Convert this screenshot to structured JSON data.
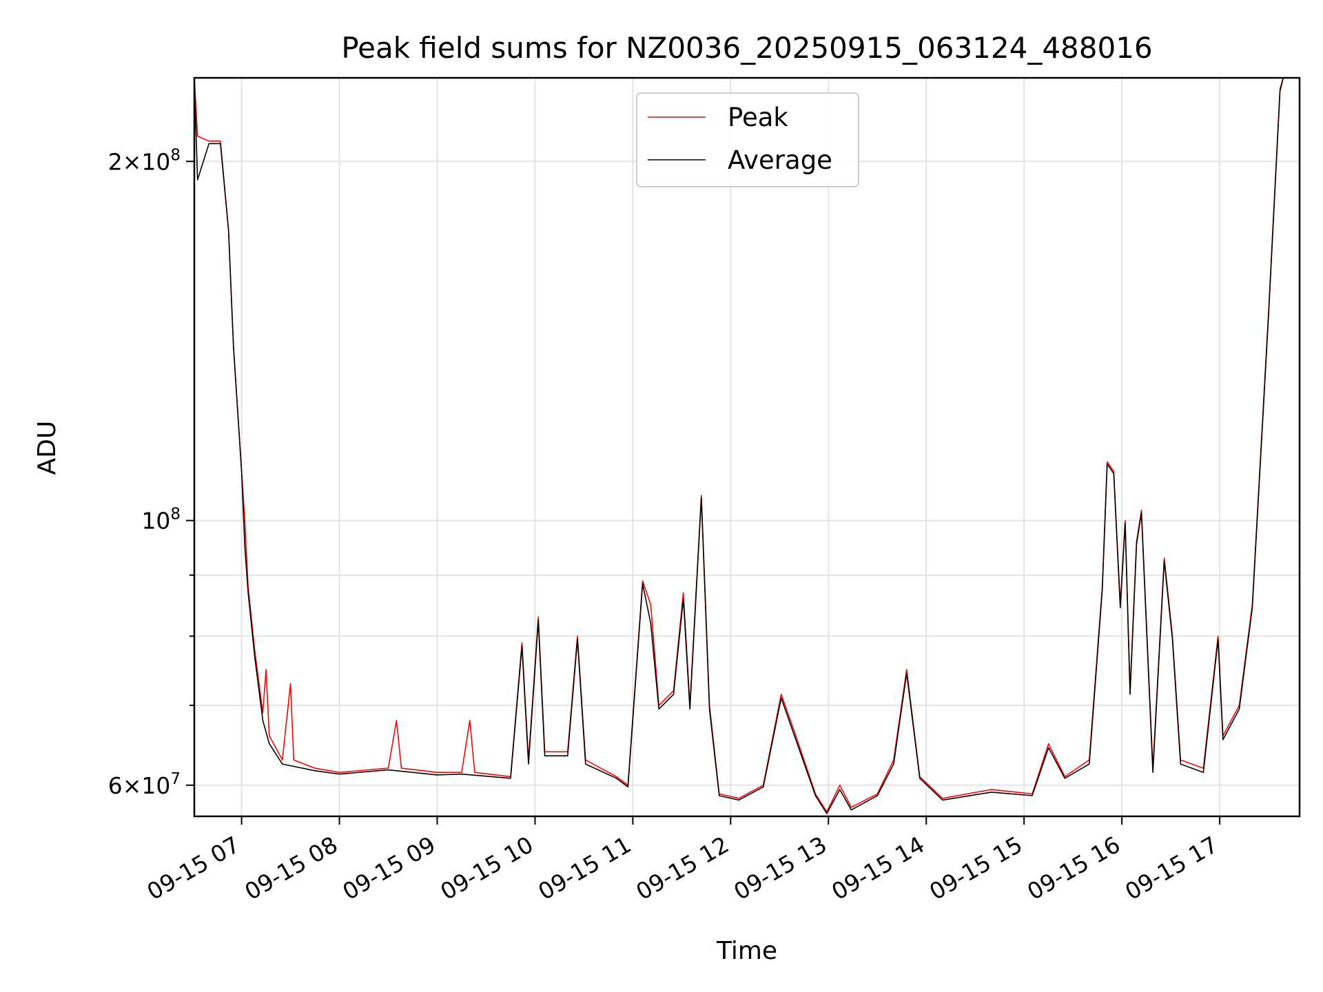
{
  "chart_data": {
    "type": "line",
    "title": "Peak field sums for NZ0036_20250915_063124_488016",
    "xlabel": "Time",
    "ylabel": "ADU",
    "y_scale": "log",
    "xlim": [
      "2025-09-15 06:31",
      "2025-09-15 17:49"
    ],
    "ylim": [
      56500000,
      235000000
    ],
    "grid": true,
    "legend_position": "top-center",
    "x_tick_labels": [
      "09-15 07",
      "09-15 08",
      "09-15 09",
      "09-15 10",
      "09-15 11",
      "09-15 12",
      "09-15 13",
      "09-15 14",
      "09-15 15",
      "09-15 16",
      "09-15 17"
    ],
    "x_tick_values": [
      "2025-09-15 07:00",
      "2025-09-15 08:00",
      "2025-09-15 09:00",
      "2025-09-15 10:00",
      "2025-09-15 11:00",
      "2025-09-15 12:00",
      "2025-09-15 13:00",
      "2025-09-15 14:00",
      "2025-09-15 15:00",
      "2025-09-15 16:00",
      "2025-09-15 17:00"
    ],
    "y_major_ticks": [
      {
        "value": 200000000,
        "mantissa": "2",
        "exponent": "8"
      },
      {
        "value": 100000000,
        "mantissa": "",
        "exponent": "8"
      },
      {
        "value": 60000000,
        "mantissa": "6",
        "exponent": "7"
      }
    ],
    "y_minor_ticks": [
      70000000,
      80000000,
      90000000
    ],
    "series": [
      {
        "name": "Peak",
        "color": "#ff0000",
        "points": [
          [
            "2025-09-15 06:31",
            235000000
          ],
          [
            "2025-09-15 06:33",
            210000000
          ],
          [
            "2025-09-15 06:40",
            208000000
          ],
          [
            "2025-09-15 06:47",
            208000000
          ],
          [
            "2025-09-15 06:52",
            175000000
          ],
          [
            "2025-09-15 06:55",
            140000000
          ],
          [
            "2025-09-15 07:00",
            110000000
          ],
          [
            "2025-09-15 07:02",
            100000000
          ],
          [
            "2025-09-15 07:04",
            88000000
          ],
          [
            "2025-09-15 07:08",
            78000000
          ],
          [
            "2025-09-15 07:13",
            69000000
          ],
          [
            "2025-09-15 07:15",
            75000000
          ],
          [
            "2025-09-15 07:17",
            66000000
          ],
          [
            "2025-09-15 07:25",
            63000000
          ],
          [
            "2025-09-15 07:30",
            73000000
          ],
          [
            "2025-09-15 07:32",
            63000000
          ],
          [
            "2025-09-15 07:45",
            62000000
          ],
          [
            "2025-09-15 08:00",
            61500000
          ],
          [
            "2025-09-15 08:30",
            62000000
          ],
          [
            "2025-09-15 08:35",
            68000000
          ],
          [
            "2025-09-15 08:38",
            62000000
          ],
          [
            "2025-09-15 09:00",
            61500000
          ],
          [
            "2025-09-15 09:15",
            61500000
          ],
          [
            "2025-09-15 09:20",
            68000000
          ],
          [
            "2025-09-15 09:23",
            61500000
          ],
          [
            "2025-09-15 09:45",
            61000000
          ],
          [
            "2025-09-15 09:52",
            79000000
          ],
          [
            "2025-09-15 09:56",
            63000000
          ],
          [
            "2025-09-15 10:02",
            83000000
          ],
          [
            "2025-09-15 10:06",
            64000000
          ],
          [
            "2025-09-15 10:20",
            64000000
          ],
          [
            "2025-09-15 10:26",
            80000000
          ],
          [
            "2025-09-15 10:31",
            63000000
          ],
          [
            "2025-09-15 10:50",
            61000000
          ],
          [
            "2025-09-15 10:57",
            60000000
          ],
          [
            "2025-09-15 11:06",
            89000000
          ],
          [
            "2025-09-15 11:11",
            85000000
          ],
          [
            "2025-09-15 11:16",
            70000000
          ],
          [
            "2025-09-15 11:25",
            72000000
          ],
          [
            "2025-09-15 11:31",
            87000000
          ],
          [
            "2025-09-15 11:35",
            70000000
          ],
          [
            "2025-09-15 11:42",
            105000000
          ],
          [
            "2025-09-15 11:47",
            70000000
          ],
          [
            "2025-09-15 11:53",
            59000000
          ],
          [
            "2025-09-15 12:05",
            58500000
          ],
          [
            "2025-09-15 12:20",
            60000000
          ],
          [
            "2025-09-15 12:31",
            71500000
          ],
          [
            "2025-09-15 12:40",
            66000000
          ],
          [
            "2025-09-15 12:52",
            59000000
          ],
          [
            "2025-09-15 12:59",
            57000000
          ],
          [
            "2025-09-15 13:07",
            60000000
          ],
          [
            "2025-09-15 13:14",
            57500000
          ],
          [
            "2025-09-15 13:30",
            59000000
          ],
          [
            "2025-09-15 13:40",
            63000000
          ],
          [
            "2025-09-15 13:48",
            75000000
          ],
          [
            "2025-09-15 13:56",
            61000000
          ],
          [
            "2025-09-15 14:10",
            58500000
          ],
          [
            "2025-09-15 14:40",
            59500000
          ],
          [
            "2025-09-15 15:05",
            59000000
          ],
          [
            "2025-09-15 15:15",
            65000000
          ],
          [
            "2025-09-15 15:25",
            61000000
          ],
          [
            "2025-09-15 15:40",
            63000000
          ],
          [
            "2025-09-15 15:48",
            88000000
          ],
          [
            "2025-09-15 15:51",
            112000000
          ],
          [
            "2025-09-15 15:55",
            110000000
          ],
          [
            "2025-09-15 15:59",
            85000000
          ],
          [
            "2025-09-15 16:02",
            100000000
          ],
          [
            "2025-09-15 16:05",
            72000000
          ],
          [
            "2025-09-15 16:09",
            96000000
          ],
          [
            "2025-09-15 16:12",
            102000000
          ],
          [
            "2025-09-15 16:19",
            62000000
          ],
          [
            "2025-09-15 16:26",
            93000000
          ],
          [
            "2025-09-15 16:31",
            80000000
          ],
          [
            "2025-09-15 16:36",
            63000000
          ],
          [
            "2025-09-15 16:50",
            62000000
          ],
          [
            "2025-09-15 16:59",
            80000000
          ],
          [
            "2025-09-15 17:02",
            66000000
          ],
          [
            "2025-09-15 17:12",
            70000000
          ],
          [
            "2025-09-15 17:20",
            85000000
          ],
          [
            "2025-09-15 17:30",
            150000000
          ],
          [
            "2025-09-15 17:37",
            230000000
          ],
          [
            "2025-09-15 17:39",
            235000000
          ]
        ]
      },
      {
        "name": "Average",
        "color": "#000000",
        "points": [
          [
            "2025-09-15 06:31",
            235000000
          ],
          [
            "2025-09-15 06:33",
            193000000
          ],
          [
            "2025-09-15 06:40",
            207000000
          ],
          [
            "2025-09-15 06:47",
            207000000
          ],
          [
            "2025-09-15 06:52",
            175000000
          ],
          [
            "2025-09-15 06:55",
            140000000
          ],
          [
            "2025-09-15 07:00",
            110000000
          ],
          [
            "2025-09-15 07:02",
            95000000
          ],
          [
            "2025-09-15 07:04",
            87000000
          ],
          [
            "2025-09-15 07:08",
            77000000
          ],
          [
            "2025-09-15 07:13",
            68000000
          ],
          [
            "2025-09-15 07:17",
            65000000
          ],
          [
            "2025-09-15 07:25",
            62500000
          ],
          [
            "2025-09-15 07:45",
            61700000
          ],
          [
            "2025-09-15 08:00",
            61300000
          ],
          [
            "2025-09-15 08:30",
            61800000
          ],
          [
            "2025-09-15 09:00",
            61200000
          ],
          [
            "2025-09-15 09:15",
            61300000
          ],
          [
            "2025-09-15 09:45",
            60800000
          ],
          [
            "2025-09-15 09:52",
            78500000
          ],
          [
            "2025-09-15 09:56",
            62500000
          ],
          [
            "2025-09-15 10:02",
            82500000
          ],
          [
            "2025-09-15 10:06",
            63500000
          ],
          [
            "2025-09-15 10:20",
            63500000
          ],
          [
            "2025-09-15 10:26",
            79500000
          ],
          [
            "2025-09-15 10:31",
            62500000
          ],
          [
            "2025-09-15 10:50",
            60800000
          ],
          [
            "2025-09-15 10:57",
            59800000
          ],
          [
            "2025-09-15 11:06",
            88500000
          ],
          [
            "2025-09-15 11:11",
            82000000
          ],
          [
            "2025-09-15 11:16",
            69500000
          ],
          [
            "2025-09-15 11:25",
            71500000
          ],
          [
            "2025-09-15 11:31",
            86000000
          ],
          [
            "2025-09-15 11:35",
            69500000
          ],
          [
            "2025-09-15 11:42",
            104500000
          ],
          [
            "2025-09-15 11:47",
            69500000
          ],
          [
            "2025-09-15 11:53",
            58800000
          ],
          [
            "2025-09-15 12:05",
            58300000
          ],
          [
            "2025-09-15 12:20",
            59800000
          ],
          [
            "2025-09-15 12:31",
            71000000
          ],
          [
            "2025-09-15 12:40",
            65500000
          ],
          [
            "2025-09-15 12:52",
            58800000
          ],
          [
            "2025-09-15 12:59",
            56800000
          ],
          [
            "2025-09-15 13:07",
            59500000
          ],
          [
            "2025-09-15 13:14",
            57200000
          ],
          [
            "2025-09-15 13:30",
            58800000
          ],
          [
            "2025-09-15 13:40",
            62500000
          ],
          [
            "2025-09-15 13:48",
            74500000
          ],
          [
            "2025-09-15 13:56",
            60800000
          ],
          [
            "2025-09-15 14:10",
            58300000
          ],
          [
            "2025-09-15 14:40",
            59200000
          ],
          [
            "2025-09-15 15:05",
            58800000
          ],
          [
            "2025-09-15 15:15",
            64500000
          ],
          [
            "2025-09-15 15:25",
            60800000
          ],
          [
            "2025-09-15 15:40",
            62500000
          ],
          [
            "2025-09-15 15:48",
            87500000
          ],
          [
            "2025-09-15 15:51",
            111500000
          ],
          [
            "2025-09-15 15:55",
            109500000
          ],
          [
            "2025-09-15 15:59",
            84500000
          ],
          [
            "2025-09-15 16:02",
            99500000
          ],
          [
            "2025-09-15 16:05",
            71500000
          ],
          [
            "2025-09-15 16:09",
            95500000
          ],
          [
            "2025-09-15 16:12",
            101500000
          ],
          [
            "2025-09-15 16:19",
            61500000
          ],
          [
            "2025-09-15 16:26",
            92500000
          ],
          [
            "2025-09-15 16:31",
            79500000
          ],
          [
            "2025-09-15 16:36",
            62500000
          ],
          [
            "2025-09-15 16:50",
            61500000
          ],
          [
            "2025-09-15 16:59",
            79500000
          ],
          [
            "2025-09-15 17:02",
            65500000
          ],
          [
            "2025-09-15 17:12",
            69500000
          ],
          [
            "2025-09-15 17:20",
            84500000
          ],
          [
            "2025-09-15 17:30",
            149000000
          ],
          [
            "2025-09-15 17:37",
            229000000
          ],
          [
            "2025-09-15 17:39",
            235000000
          ]
        ]
      }
    ]
  }
}
